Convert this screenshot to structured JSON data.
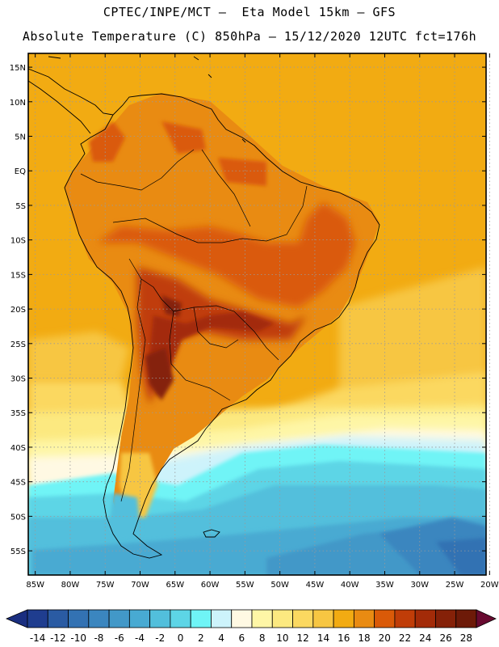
{
  "header": {
    "title_line1": "CPTEC/INPE/MCT –  Eta Model 15km – GFS",
    "title_line2": "Absolute Temperature (C) 850hPa – 15/12/2020 12UTC fct=176h"
  },
  "map": {
    "lat_labels": [
      "15N",
      "10N",
      "5N",
      "EQ",
      "5S",
      "10S",
      "15S",
      "20S",
      "25S",
      "30S",
      "35S",
      "40S",
      "45S",
      "50S",
      "55S"
    ],
    "lat_values": [
      15,
      10,
      5,
      0,
      -5,
      -10,
      -15,
      -20,
      -25,
      -30,
      -35,
      -40,
      -45,
      -50,
      -55
    ],
    "lon_labels": [
      "85W",
      "80W",
      "75W",
      "70W",
      "65W",
      "60W",
      "55W",
      "50W",
      "45W",
      "40W",
      "35W",
      "30W",
      "25W",
      "20W"
    ],
    "lon_values": [
      -85,
      -80,
      -75,
      -70,
      -65,
      -60,
      -55,
      -50,
      -45,
      -40,
      -35,
      -30,
      -25,
      -20
    ],
    "lat_range": [
      -58.5,
      17
    ],
    "lon_range": [
      -86,
      -20.5
    ]
  },
  "colorbar": {
    "labels": [
      "-14",
      "-12",
      "-10",
      "-8",
      "-6",
      "-4",
      "-2",
      "0",
      "2",
      "4",
      "6",
      "8",
      "10",
      "12",
      "14",
      "16",
      "18",
      "20",
      "22",
      "24",
      "26",
      "28"
    ],
    "colors": [
      "#1f3d8f",
      "#2a5ba3",
      "#3372b3",
      "#3b86bf",
      "#4298c8",
      "#48aad2",
      "#52bfdc",
      "#5dd5e6",
      "#6ff4f6",
      "#cdf3fb",
      "#fff9e3",
      "#fef6a6",
      "#fce980",
      "#fbd860",
      "#f7c642",
      "#f2ab12",
      "#e98b12",
      "#da5a08",
      "#c03d08",
      "#a32b08",
      "#852108",
      "#6d1a08"
    ],
    "left_triangle_color": "#1a2e80",
    "right_triangle_color": "#680a30"
  }
}
